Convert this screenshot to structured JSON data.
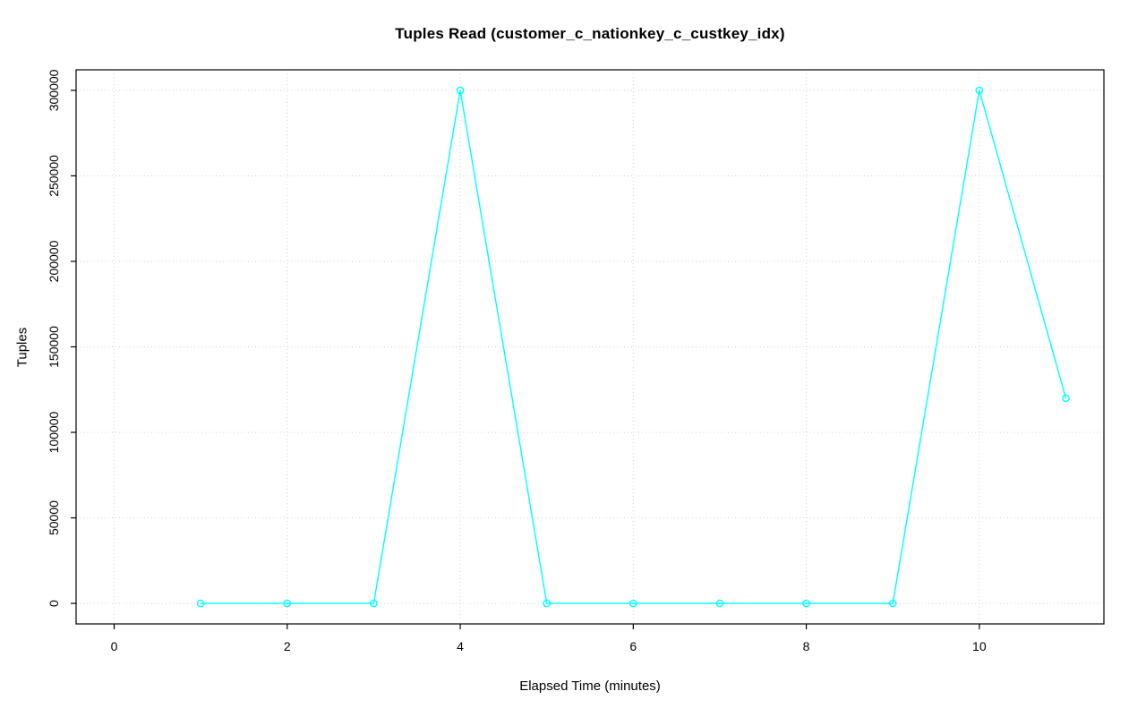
{
  "chart_data": {
    "type": "line",
    "title": "Tuples Read (customer_c_nationkey_c_custkey_idx)",
    "xlabel": "Elapsed Time (minutes)",
    "ylabel": "Tuples",
    "x": [
      1,
      2,
      3,
      4,
      5,
      6,
      7,
      8,
      9,
      10,
      11
    ],
    "y": [
      0,
      0,
      0,
      300000,
      0,
      0,
      0,
      0,
      0,
      300000,
      120000
    ],
    "xticks": [
      0,
      2,
      4,
      6,
      8,
      10
    ],
    "yticks": [
      0,
      50000,
      100000,
      150000,
      200000,
      250000,
      300000
    ],
    "xlim": [
      -0.44,
      11.44
    ],
    "ylim": [
      -12000,
      312000
    ],
    "series_color": "#00FFFF",
    "grid": true,
    "grid_color": "#D3D3D3",
    "axis_color": "#000000",
    "marker": "open-circle",
    "legend": "none"
  }
}
